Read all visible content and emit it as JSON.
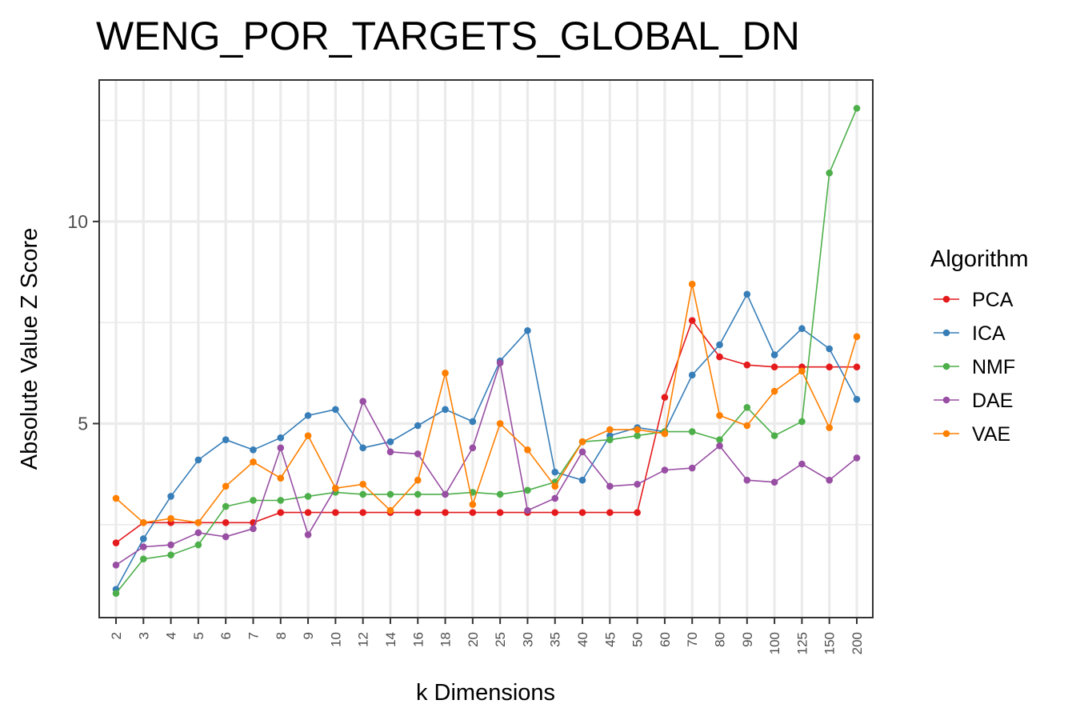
{
  "chart_data": {
    "type": "line",
    "title": "WENG_POR_TARGETS_GLOBAL_DN",
    "xlabel": "k Dimensions",
    "ylabel": "Absolute Value Z Score",
    "categories": [
      "2",
      "3",
      "4",
      "5",
      "6",
      "7",
      "8",
      "9",
      "10",
      "12",
      "14",
      "16",
      "18",
      "20",
      "25",
      "30",
      "35",
      "40",
      "45",
      "50",
      "60",
      "70",
      "80",
      "90",
      "100",
      "125",
      "150",
      "200"
    ],
    "ylim": [
      0.2,
      13.5
    ],
    "yticks": [
      5,
      10
    ],
    "ytick_labels": [
      "5",
      "10"
    ],
    "grid": true,
    "legend": {
      "title": "Algorithm",
      "position": "right"
    },
    "series": [
      {
        "name": "PCA",
        "color": "#E41A1C",
        "values": [
          2.05,
          2.55,
          2.55,
          2.55,
          2.55,
          2.55,
          2.8,
          2.8,
          2.8,
          2.8,
          2.8,
          2.8,
          2.8,
          2.8,
          2.8,
          2.8,
          2.8,
          2.8,
          2.8,
          2.8,
          5.65,
          7.55,
          6.65,
          6.45,
          6.4,
          6.4,
          6.4,
          6.4
        ]
      },
      {
        "name": "ICA",
        "color": "#377EB8",
        "values": [
          0.9,
          2.15,
          3.2,
          4.1,
          4.6,
          4.35,
          4.65,
          5.2,
          5.35,
          4.4,
          4.55,
          4.95,
          5.35,
          5.05,
          6.55,
          7.3,
          3.8,
          3.6,
          4.7,
          4.9,
          4.8,
          6.2,
          6.95,
          8.2,
          6.7,
          7.35,
          6.85,
          5.6
        ]
      },
      {
        "name": "NMF",
        "color": "#4DAF4A",
        "values": [
          0.8,
          1.65,
          1.75,
          2.0,
          2.95,
          3.1,
          3.1,
          3.2,
          3.3,
          3.25,
          3.25,
          3.25,
          3.25,
          3.3,
          3.25,
          3.35,
          3.55,
          4.55,
          4.6,
          4.7,
          4.8,
          4.8,
          4.6,
          5.4,
          4.7,
          5.05,
          11.2,
          12.8
        ]
      },
      {
        "name": "DAE",
        "color": "#984EA3",
        "values": [
          1.5,
          1.95,
          2.0,
          2.3,
          2.2,
          2.4,
          4.4,
          2.25,
          3.4,
          5.55,
          4.3,
          4.25,
          3.25,
          4.4,
          6.5,
          2.85,
          3.15,
          4.3,
          3.45,
          3.5,
          3.85,
          3.9,
          4.45,
          3.6,
          3.55,
          4.0,
          3.6,
          4.15
        ]
      },
      {
        "name": "VAE",
        "color": "#FF7F00",
        "values": [
          3.15,
          2.55,
          2.65,
          2.55,
          3.45,
          4.05,
          3.65,
          4.7,
          3.4,
          3.5,
          2.85,
          3.6,
          6.25,
          3.0,
          5.0,
          4.35,
          3.45,
          4.55,
          4.85,
          4.85,
          4.75,
          8.45,
          5.2,
          4.95,
          5.8,
          6.3,
          4.9,
          7.15
        ]
      }
    ]
  }
}
